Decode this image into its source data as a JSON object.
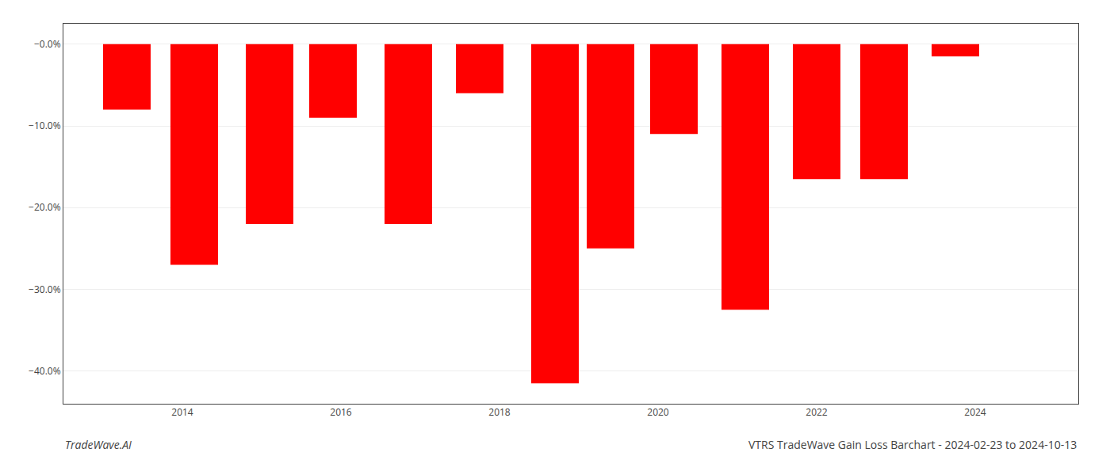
{
  "chart_data": {
    "type": "bar",
    "title": "VTRS TradeWave Gain Loss Barchart - 2024-02-23 to 2024-10-13",
    "annotations": [
      "TradeWave.AI"
    ],
    "x": [
      2013.3,
      2014.15,
      2015.1,
      2015.9,
      2016.85,
      2017.75,
      2018.7,
      2019.4,
      2020.2,
      2021.1,
      2022.0,
      2022.85,
      2023.75
    ],
    "values": [
      -8.0,
      -27.0,
      -22.0,
      -9.0,
      -22.0,
      -6.0,
      -41.5,
      -25.0,
      -11.0,
      -32.5,
      -16.5,
      -16.5,
      -1.5
    ],
    "color": "#ff0000",
    "xlim": [
      2012.5,
      2025.3
    ],
    "xticks": [
      2014,
      2016,
      2018,
      2020,
      2022,
      2024
    ],
    "ylim": [
      -44,
      2.5
    ],
    "yticks": [
      {
        "value": 0.0,
        "label": "−0.0%"
      },
      {
        "value": -10.0,
        "label": "−10.0%"
      },
      {
        "value": -20.0,
        "label": "−20.0%"
      },
      {
        "value": -30.0,
        "label": "−30.0%"
      },
      {
        "value": -40.0,
        "label": "−40.0%"
      }
    ],
    "grid": true
  }
}
